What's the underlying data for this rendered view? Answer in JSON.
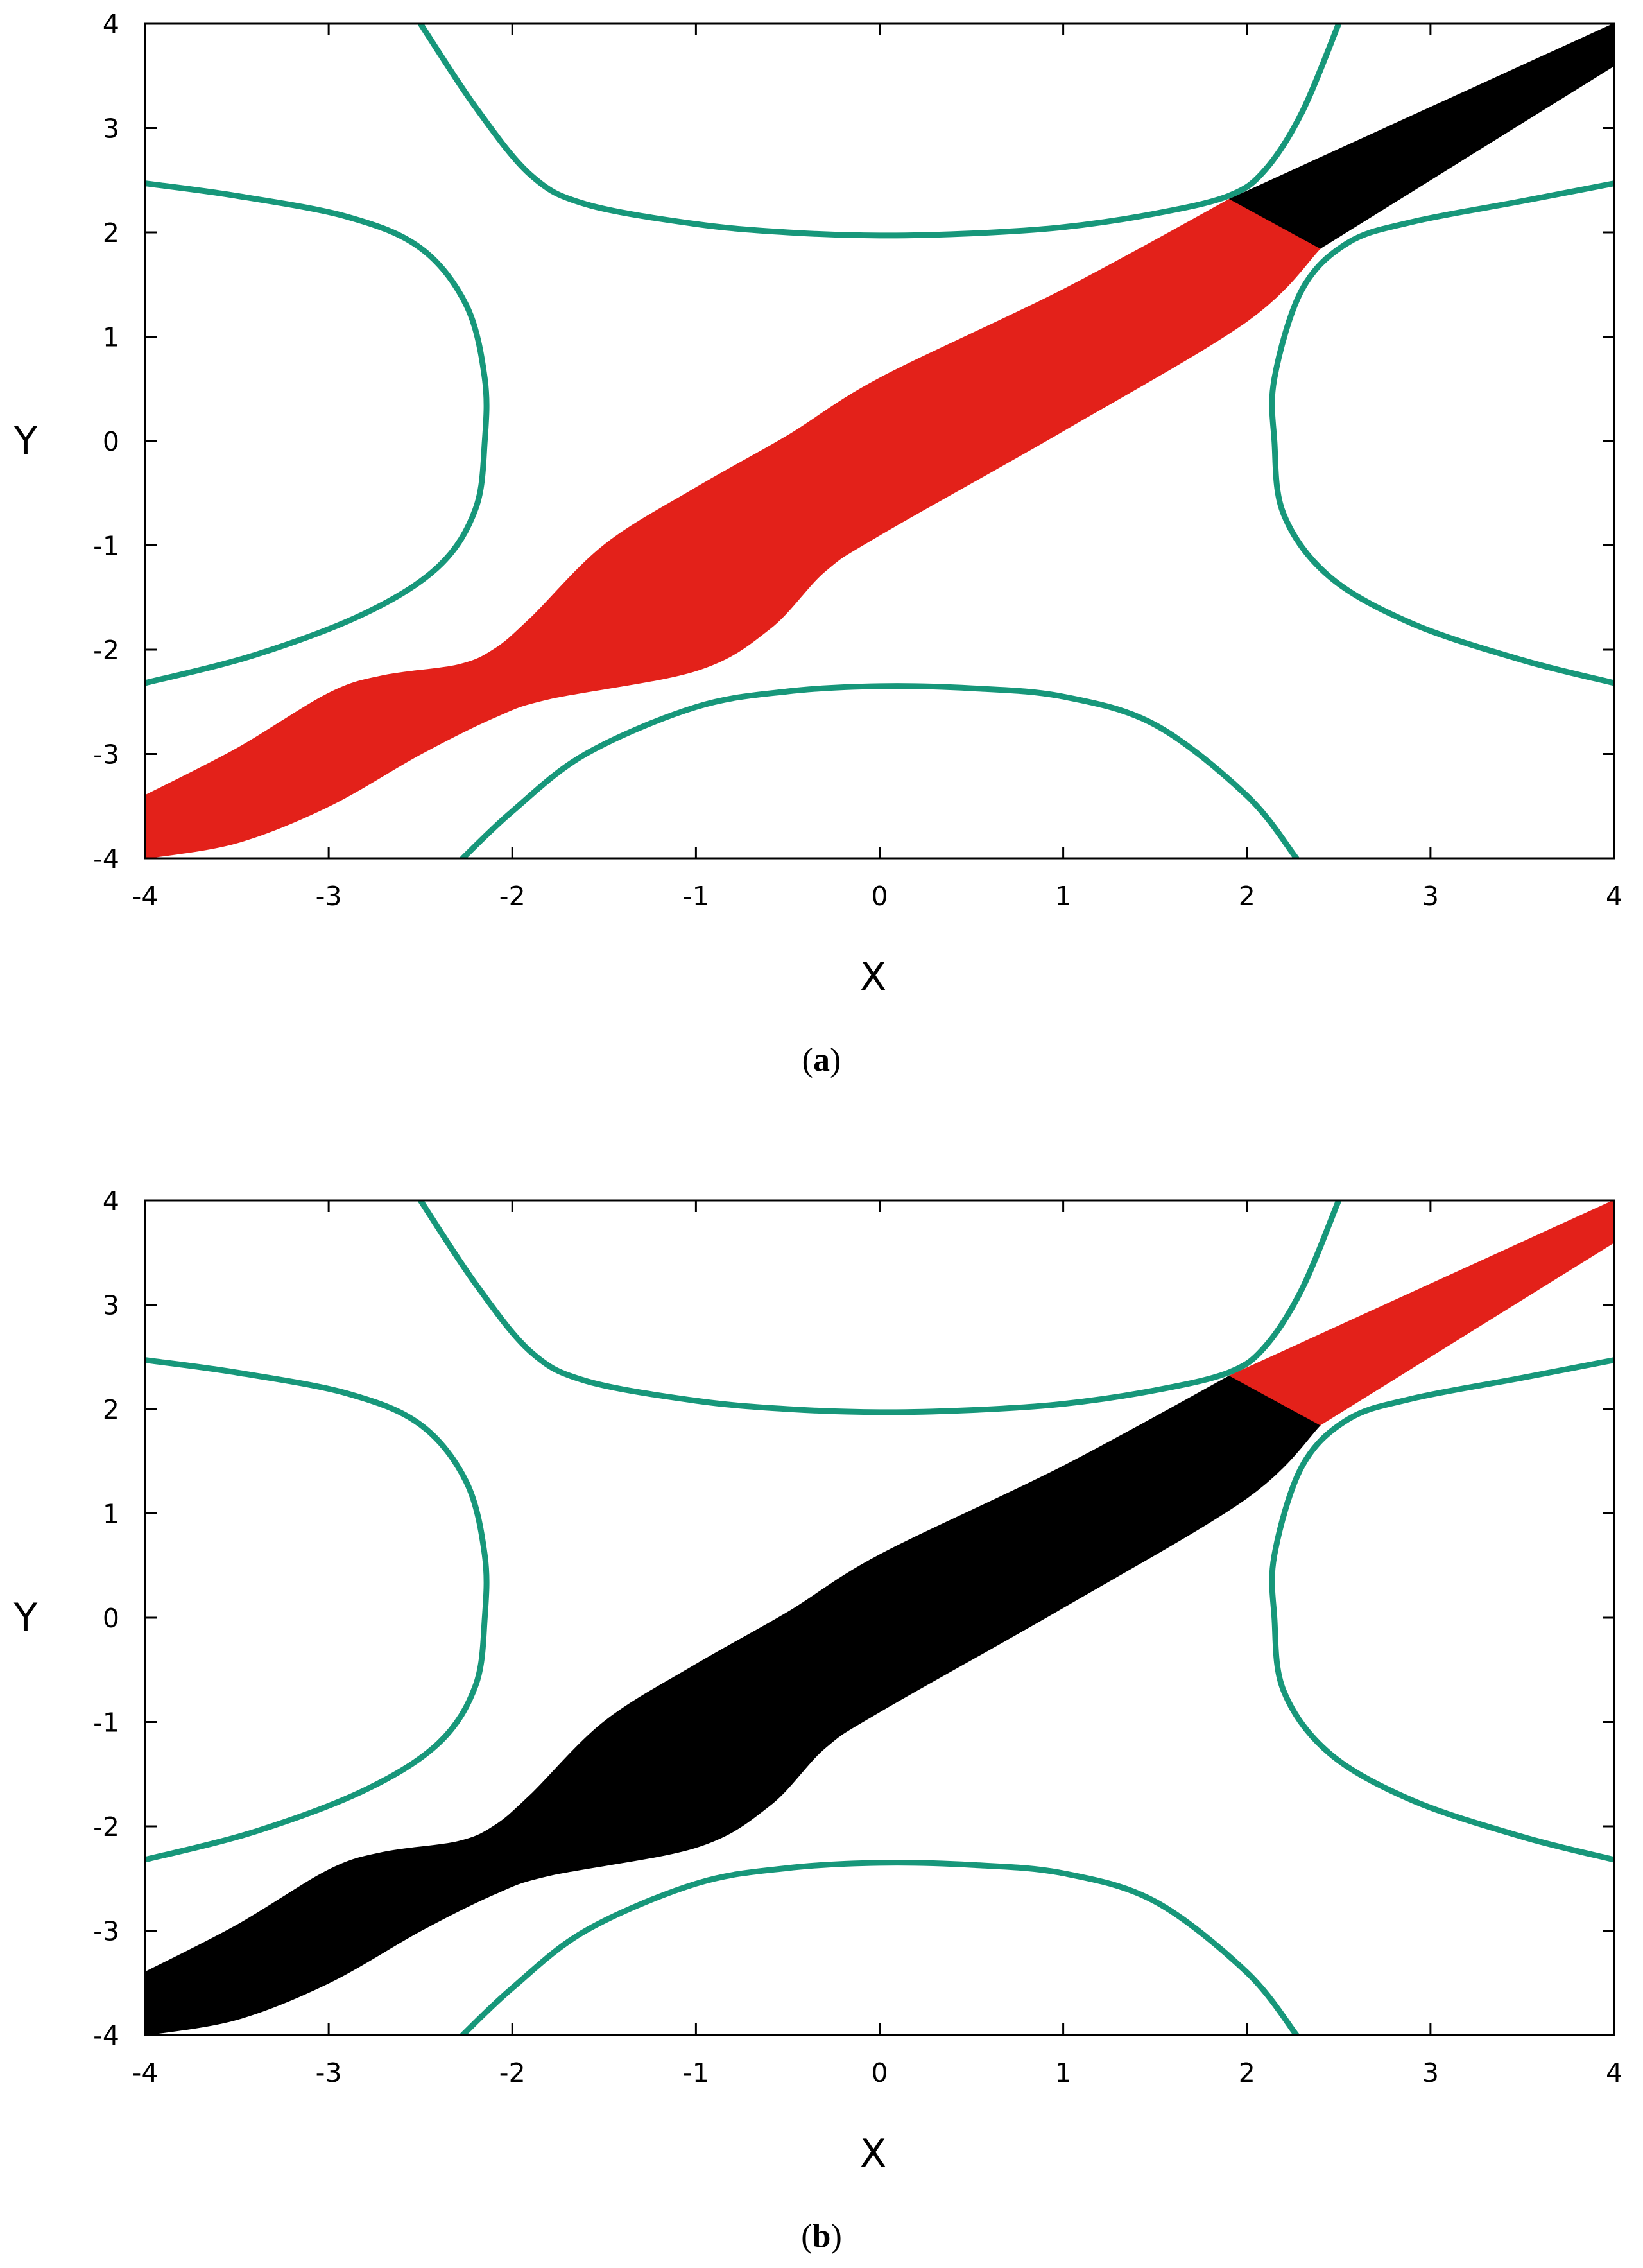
{
  "chart_data": [
    {
      "panel": "a",
      "type": "area",
      "caption_letter": "a",
      "xlabel": "X",
      "ylabel": "Y",
      "xlim": [
        -4,
        4
      ],
      "ylim": [
        -4,
        4
      ],
      "xticks": [
        "-4",
        "-3",
        "-2",
        "-1",
        "0",
        "1",
        "2",
        "3",
        "4"
      ],
      "yticks": [
        "-4",
        "-3",
        "-2",
        "-1",
        "0",
        "1",
        "2",
        "3",
        "4"
      ],
      "grid": false,
      "series": [
        {
          "kind": "region",
          "color": "#e3211a",
          "upper": [
            [
              -4,
              -3.4
            ],
            [
              -3.5,
              -2.95
            ],
            [
              -3.0,
              -2.42
            ],
            [
              -2.7,
              -2.25
            ],
            [
              -2.3,
              -2.15
            ],
            [
              -2.1,
              -2.0
            ],
            [
              -1.9,
              -1.7
            ],
            [
              -1.5,
              -1.0
            ],
            [
              -1.0,
              -0.45
            ],
            [
              -0.5,
              0.05
            ],
            [
              0,
              0.6
            ],
            [
              1.0,
              1.45
            ],
            [
              1.91,
              2.32
            ]
          ],
          "lower": [
            [
              -4,
              -4.0
            ],
            [
              -3.5,
              -3.85
            ],
            [
              -3.0,
              -3.5
            ],
            [
              -2.5,
              -3.0
            ],
            [
              -2.1,
              -2.65
            ],
            [
              -1.8,
              -2.47
            ],
            [
              -1.0,
              -2.2
            ],
            [
              -0.6,
              -1.8
            ],
            [
              -0.3,
              -1.25
            ],
            [
              0,
              -0.9
            ],
            [
              1.0,
              0.1
            ],
            [
              2.0,
              1.15
            ],
            [
              2.4,
              1.85
            ]
          ]
        },
        {
          "kind": "region",
          "color": "#000000",
          "polygon": [
            [
              1.91,
              2.32
            ],
            [
              4.0,
              4.0
            ],
            [
              4.0,
              3.6
            ],
            [
              2.4,
              1.85
            ]
          ]
        }
      ]
    },
    {
      "panel": "b",
      "type": "area",
      "caption_letter": "b",
      "xlabel": "X",
      "ylabel": "Y",
      "xlim": [
        -4,
        4
      ],
      "ylim": [
        -4,
        4
      ],
      "xticks": [
        "-4",
        "-3",
        "-2",
        "-1",
        "0",
        "1",
        "2",
        "3",
        "4"
      ],
      "yticks": [
        "-4",
        "-3",
        "-2",
        "-1",
        "0",
        "1",
        "2",
        "3",
        "4"
      ],
      "grid": false,
      "series": [
        {
          "kind": "region",
          "color": "#000000",
          "upper": [
            [
              -4,
              -3.4
            ],
            [
              -3.5,
              -2.95
            ],
            [
              -3.0,
              -2.42
            ],
            [
              -2.7,
              -2.25
            ],
            [
              -2.3,
              -2.15
            ],
            [
              -2.1,
              -2.0
            ],
            [
              -1.9,
              -1.7
            ],
            [
              -1.5,
              -1.0
            ],
            [
              -1.0,
              -0.45
            ],
            [
              -0.5,
              0.05
            ],
            [
              0,
              0.6
            ],
            [
              1.0,
              1.45
            ],
            [
              1.91,
              2.32
            ]
          ],
          "lower": [
            [
              -4,
              -4.0
            ],
            [
              -3.5,
              -3.85
            ],
            [
              -3.0,
              -3.5
            ],
            [
              -2.5,
              -3.0
            ],
            [
              -2.1,
              -2.65
            ],
            [
              -1.8,
              -2.47
            ],
            [
              -1.0,
              -2.2
            ],
            [
              -0.6,
              -1.8
            ],
            [
              -0.3,
              -1.25
            ],
            [
              0,
              -0.9
            ],
            [
              1.0,
              0.1
            ],
            [
              2.0,
              1.15
            ],
            [
              2.4,
              1.85
            ]
          ]
        },
        {
          "kind": "region",
          "color": "#e3211a",
          "polygon": [
            [
              1.91,
              2.32
            ],
            [
              4.0,
              4.0
            ],
            [
              4.0,
              3.6
            ],
            [
              2.4,
              1.85
            ]
          ]
        }
      ]
    }
  ],
  "curves": {
    "color": "#17977a",
    "top": [
      [
        -2.5,
        4.0
      ],
      [
        -2.2,
        3.2
      ],
      [
        -1.9,
        2.55
      ],
      [
        -1.6,
        2.27
      ],
      [
        -1.0,
        2.08
      ],
      [
        -0.5,
        2.0
      ],
      [
        0,
        1.97
      ],
      [
        0.5,
        1.99
      ],
      [
        1.0,
        2.05
      ],
      [
        1.5,
        2.18
      ],
      [
        1.9,
        2.35
      ],
      [
        2.1,
        2.6
      ],
      [
        2.3,
        3.15
      ],
      [
        2.5,
        4.0
      ]
    ],
    "bottom": [
      [
        -2.27,
        -4.0
      ],
      [
        -2.0,
        -3.55
      ],
      [
        -1.6,
        -3.0
      ],
      [
        -1.0,
        -2.55
      ],
      [
        -0.5,
        -2.4
      ],
      [
        0,
        -2.35
      ],
      [
        0.5,
        -2.37
      ],
      [
        1.0,
        -2.45
      ],
      [
        1.5,
        -2.72
      ],
      [
        2.0,
        -3.4
      ],
      [
        2.27,
        -4.0
      ]
    ],
    "left": [
      [
        -4.0,
        2.47
      ],
      [
        -3.5,
        2.35
      ],
      [
        -2.9,
        2.15
      ],
      [
        -2.5,
        1.85
      ],
      [
        -2.25,
        1.3
      ],
      [
        -2.15,
        0.6
      ],
      [
        -2.15,
        0
      ],
      [
        -2.2,
        -0.65
      ],
      [
        -2.4,
        -1.2
      ],
      [
        -2.8,
        -1.65
      ],
      [
        -3.4,
        -2.05
      ],
      [
        -4.0,
        -2.32
      ]
    ],
    "right": [
      [
        4.0,
        2.47
      ],
      [
        3.5,
        2.3
      ],
      [
        2.9,
        2.1
      ],
      [
        2.55,
        1.9
      ],
      [
        2.3,
        1.45
      ],
      [
        2.15,
        0.6
      ],
      [
        2.15,
        0
      ],
      [
        2.2,
        -0.7
      ],
      [
        2.45,
        -1.3
      ],
      [
        2.9,
        -1.75
      ],
      [
        3.5,
        -2.1
      ],
      [
        4.0,
        -2.32
      ]
    ]
  }
}
